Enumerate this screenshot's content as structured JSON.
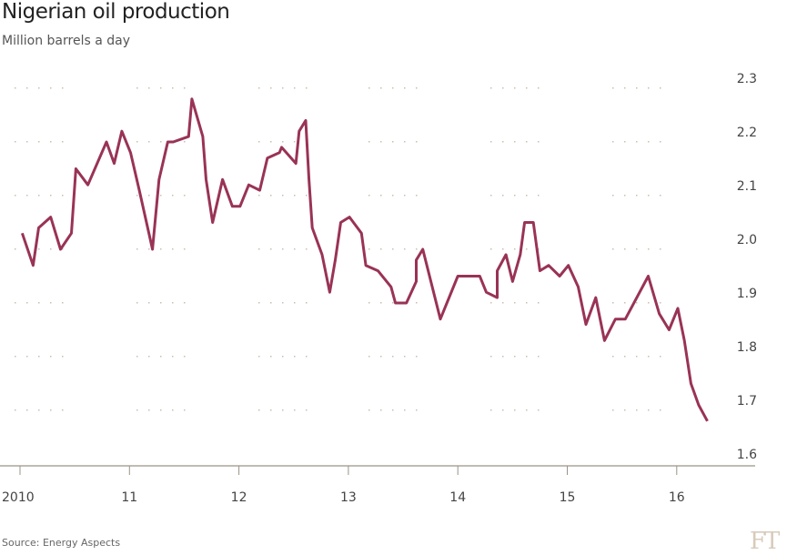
{
  "chart_data": {
    "type": "line",
    "title": "Nigerian oil production",
    "subtitle": "Million barrels a day",
    "source": "Source: Energy Aspects",
    "logo": "FT",
    "xlabel": "",
    "ylabel": "Million barrels a day",
    "xlim": [
      2010,
      2016.7
    ],
    "ylim": [
      1.6,
      2.3
    ],
    "y_ticks": [
      "2.3",
      "2.2",
      "2.1",
      "2.0",
      "1.9",
      "1.8",
      "1.7",
      "1.6"
    ],
    "x_ticks": [
      "2010",
      "11",
      "12",
      "13",
      "14",
      "15",
      "16"
    ],
    "grid": true,
    "line_color": "#993355",
    "series": [
      {
        "name": "Nigerian oil production",
        "x": [
          2010.02,
          2010.12,
          2010.17,
          2010.28,
          2010.37,
          2010.47,
          2010.51,
          2010.62,
          2010.79,
          2010.86,
          2010.93,
          2011.01,
          2011.09,
          2011.21,
          2011.27,
          2011.35,
          2011.4,
          2011.54,
          2011.57,
          2011.67,
          2011.7,
          2011.76,
          2011.85,
          2011.94,
          2012.01,
          2012.09,
          2012.19,
          2012.26,
          2012.37,
          2012.39,
          2012.52,
          2012.55,
          2012.61,
          2012.64,
          2012.67,
          2012.76,
          2012.83,
          2012.88,
          2012.93,
          2013.01,
          2013.12,
          2013.16,
          2013.27,
          2013.39,
          2013.43,
          2013.53,
          2013.62,
          2013.62,
          2013.68,
          2013.84,
          2014.0,
          2014.2,
          2014.26,
          2014.36,
          2014.36,
          2014.44,
          2014.5,
          2014.57,
          2014.61,
          2014.69,
          2014.75,
          2014.83,
          2014.93,
          2015.01,
          2015.1,
          2015.17,
          2015.26,
          2015.34,
          2015.44,
          2015.53,
          2015.74,
          2015.84,
          2015.93,
          2016.01,
          2016.07,
          2016.13,
          2016.2,
          2016.28
        ],
        "values": [
          2.03,
          1.97,
          2.04,
          2.06,
          2.0,
          2.03,
          2.15,
          2.12,
          2.2,
          2.16,
          2.22,
          2.18,
          2.11,
          2.0,
          2.13,
          2.2,
          2.2,
          2.21,
          2.28,
          2.21,
          2.13,
          2.05,
          2.13,
          2.08,
          2.08,
          2.12,
          2.11,
          2.17,
          2.18,
          2.19,
          2.16,
          2.22,
          2.24,
          2.13,
          2.04,
          1.99,
          1.92,
          1.98,
          2.05,
          2.06,
          2.03,
          1.97,
          1.96,
          1.93,
          1.9,
          1.9,
          1.94,
          1.98,
          2.0,
          1.87,
          1.95,
          1.95,
          1.92,
          1.91,
          1.96,
          1.99,
          1.94,
          1.99,
          2.05,
          2.05,
          1.96,
          1.97,
          1.95,
          1.97,
          1.93,
          1.86,
          1.91,
          1.83,
          1.87,
          1.87,
          1.95,
          1.88,
          1.85,
          1.89,
          1.83,
          1.75,
          1.71,
          1.68
        ]
      }
    ]
  }
}
